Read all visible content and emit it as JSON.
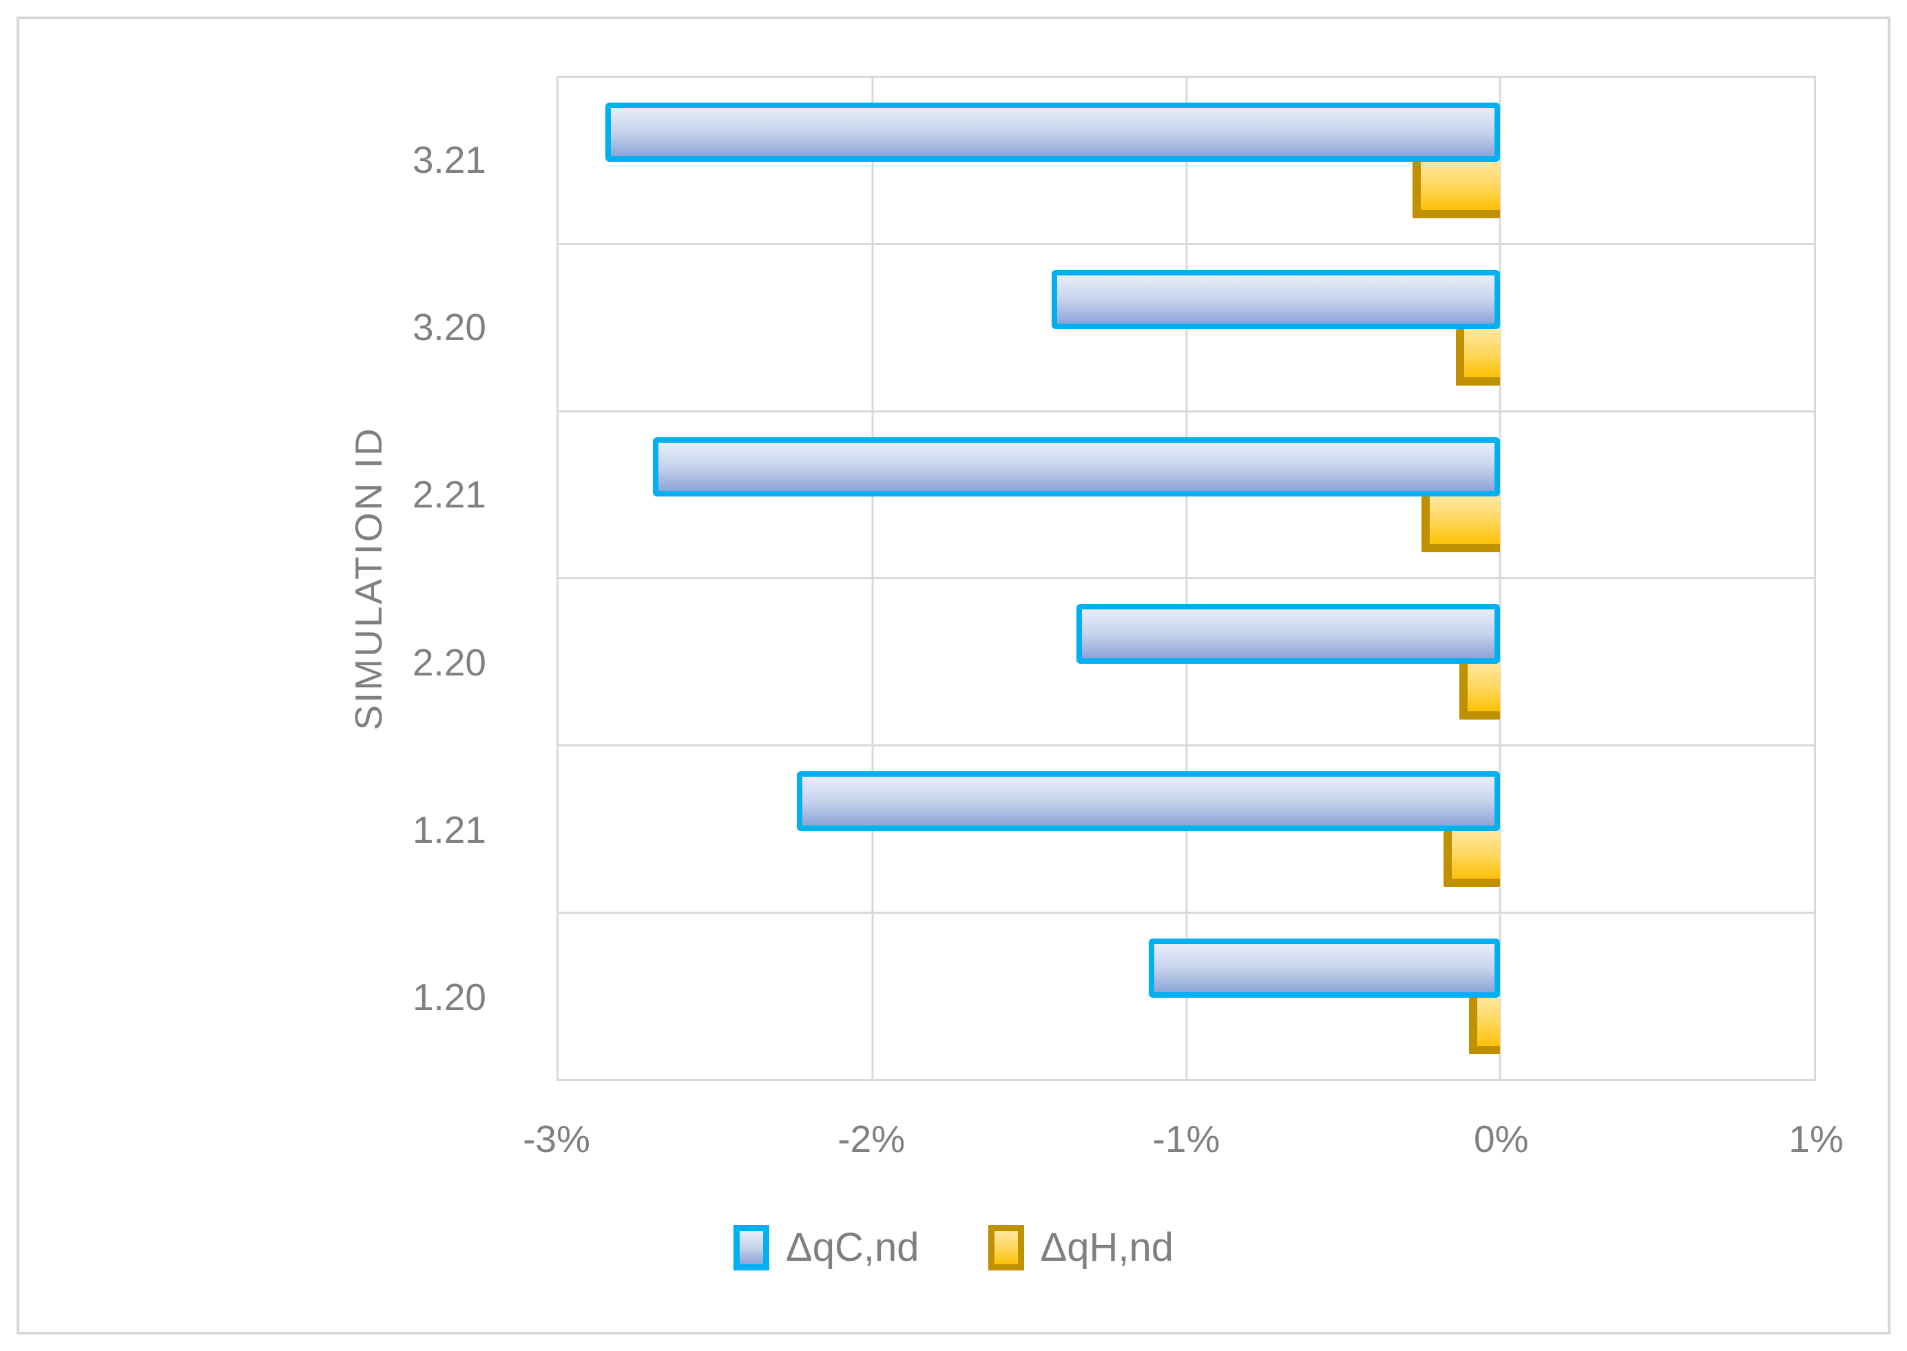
{
  "chart_data": {
    "type": "bar",
    "orientation": "horizontal",
    "title": "",
    "y_axis_title": "SIMULATION ID",
    "categories_top_to_bottom": [
      "3.21",
      "3.20",
      "2.21",
      "2.20",
      "1.21",
      "1.20"
    ],
    "series": [
      {
        "id": "dqc-nd",
        "name": "ΔqC,nd",
        "values_pct": [
          -2.85,
          -1.43,
          -2.7,
          -1.35,
          -2.24,
          -1.12
        ],
        "fill_top": "#e8eef8",
        "fill_mid": "#c6d3ec",
        "fill_bottom": "#8ca4d8",
        "border_color": "#00b0f0"
      },
      {
        "id": "dqh-nd",
        "name": "ΔqH,nd",
        "values_pct": [
          -0.28,
          -0.14,
          -0.25,
          -0.13,
          -0.18,
          -0.1
        ],
        "fill_top": "#ffe89e",
        "fill_mid": "#ffd75e",
        "fill_bottom": "#fdc105",
        "border_color": "#bf9000"
      }
    ],
    "x_axis": {
      "min_pct": -3,
      "max_pct": 1,
      "tick_step_pct": 1,
      "ticks_pct": [
        -3,
        -2,
        -1,
        0,
        1
      ],
      "tick_labels": [
        "-3%",
        "-2%",
        "-1%",
        "0%",
        "1%"
      ]
    },
    "bars_anchor_pct": 0,
    "grid": true,
    "legend_position": "bottom"
  },
  "styles": {
    "grid_color": "#d9d9d9",
    "outer_border_color": "#d6d6d6",
    "axis_text_color": "#808080",
    "legend_text_color": "#7f7f7f",
    "background": "#ffffff"
  }
}
